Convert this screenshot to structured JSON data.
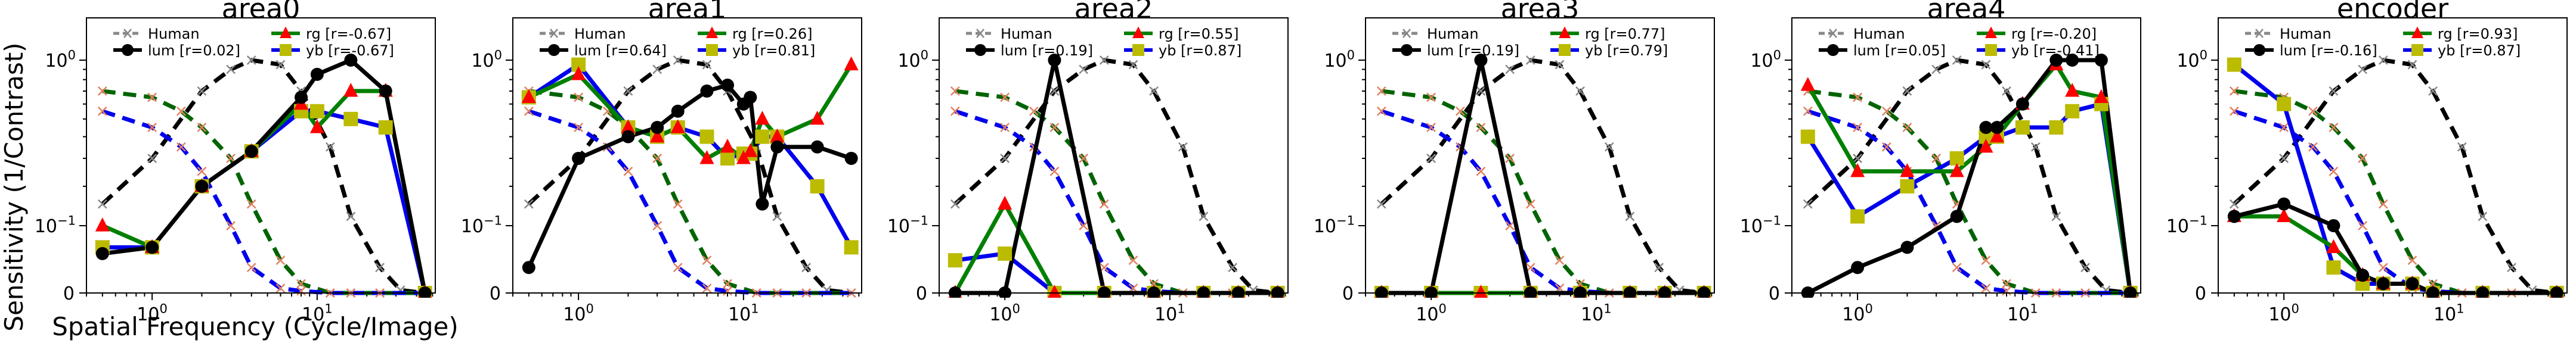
{
  "figure": {
    "ylabel": "Sensitivity (1/Contrast)",
    "xlabel": "Spatial Frequency (Cycle/Image)"
  },
  "colors": {
    "Human": "#888888",
    "lum": "#000000",
    "rg": "#008000",
    "yb": "#0000ee",
    "rg_model_marker": "#ff0000",
    "yb_model_marker": "#bbbb00",
    "human_lum": "#000000",
    "human_rg": "#006400",
    "human_yb": "#0000ee",
    "human_marker": "#e08060"
  },
  "chart_data": [
    {
      "type": "line",
      "title": "area0",
      "xscale": "log",
      "yscale": "symlog",
      "ylim": [
        0,
        1.6
      ],
      "legend": [
        {
          "key": "Human",
          "label": "Human",
          "r": ""
        },
        {
          "key": "lum",
          "label": "lum",
          "r": "[r=0.02]"
        },
        {
          "key": "rg",
          "label": "rg",
          "r": "[r=-0.67]"
        },
        {
          "key": "yb",
          "label": "yb",
          "r": "[r=-0.67]"
        }
      ],
      "series": [
        {
          "key": "lum",
          "x": [
            0.5,
            1,
            2,
            4,
            8,
            10,
            16,
            26,
            45
          ],
          "y": [
            0.05,
            0.06,
            0.2,
            0.33,
            0.65,
            0.85,
            1.0,
            0.7,
            0.0
          ]
        },
        {
          "key": "rg",
          "x": [
            0.5,
            1,
            2,
            4,
            8,
            10,
            16,
            26,
            45
          ],
          "y": [
            0.1,
            0.06,
            0.2,
            0.33,
            0.6,
            0.45,
            0.7,
            0.7,
            0.0
          ]
        },
        {
          "key": "yb",
          "x": [
            0.5,
            1,
            2,
            4,
            8,
            10,
            16,
            26,
            45
          ],
          "y": [
            0.06,
            0.06,
            0.2,
            0.33,
            0.55,
            0.55,
            0.5,
            0.45,
            0.0
          ]
        }
      ]
    },
    {
      "type": "line",
      "title": "area1",
      "xscale": "log",
      "yscale": "symlog",
      "ylim": [
        0,
        1.6
      ],
      "legend": [
        {
          "key": "Human",
          "label": "Human",
          "r": ""
        },
        {
          "key": "lum",
          "label": "lum",
          "r": "[r=0.64]"
        },
        {
          "key": "rg",
          "label": "rg",
          "r": "[r=0.26]"
        },
        {
          "key": "yb",
          "label": "yb",
          "r": "[r=0.81]"
        }
      ],
      "series": [
        {
          "key": "lum",
          "x": [
            0.5,
            1,
            2,
            3,
            4,
            6,
            8,
            10,
            11,
            13,
            16,
            28,
            45
          ],
          "y": [
            0.03,
            0.3,
            0.4,
            0.45,
            0.55,
            0.7,
            0.75,
            0.6,
            0.65,
            0.15,
            0.35,
            0.35,
            0.3
          ]
        },
        {
          "key": "rg",
          "x": [
            0.5,
            1,
            2,
            3,
            4,
            6,
            8,
            10,
            11,
            13,
            16,
            28,
            45
          ],
          "y": [
            0.65,
            0.85,
            0.45,
            0.4,
            0.45,
            0.3,
            0.35,
            0.3,
            0.33,
            0.5,
            0.4,
            0.5,
            0.95
          ]
        },
        {
          "key": "yb",
          "x": [
            0.5,
            1,
            2,
            3,
            4,
            6,
            8,
            10,
            11,
            13,
            16,
            28,
            45
          ],
          "y": [
            0.65,
            0.95,
            0.45,
            0.4,
            0.45,
            0.4,
            0.3,
            0.32,
            0.32,
            0.4,
            0.4,
            0.2,
            0.06
          ]
        }
      ]
    },
    {
      "type": "line",
      "title": "area2",
      "xscale": "log",
      "yscale": "symlog",
      "ylim": [
        0,
        1.6
      ],
      "legend": [
        {
          "key": "Human",
          "label": "Human",
          "r": ""
        },
        {
          "key": "lum",
          "label": "lum",
          "r": "[r=0.19]"
        },
        {
          "key": "rg",
          "label": "rg",
          "r": "[r=0.55]"
        },
        {
          "key": "yb",
          "label": "yb",
          "r": "[r=0.87]"
        }
      ],
      "series": [
        {
          "key": "lum",
          "x": [
            0.5,
            1,
            2,
            4,
            8,
            16,
            26,
            45
          ],
          "y": [
            0.0,
            0.0,
            1.0,
            0.0,
            0.0,
            0.0,
            0.0,
            0.0
          ]
        },
        {
          "key": "rg",
          "x": [
            0.5,
            1,
            2,
            4,
            8,
            16,
            26,
            45
          ],
          "y": [
            0.0,
            0.15,
            0.0,
            0.0,
            0.0,
            0.0,
            0.0,
            0.0
          ]
        },
        {
          "key": "yb",
          "x": [
            0.5,
            1,
            2,
            4,
            8,
            16,
            26,
            45
          ],
          "y": [
            0.04,
            0.05,
            0.0,
            0.0,
            0.0,
            0.0,
            0.0,
            0.0
          ]
        }
      ]
    },
    {
      "type": "line",
      "title": "area3",
      "xscale": "log",
      "yscale": "symlog",
      "ylim": [
        0,
        1.6
      ],
      "legend": [
        {
          "key": "Human",
          "label": "Human",
          "r": ""
        },
        {
          "key": "lum",
          "label": "lum",
          "r": "[r=0.19]"
        },
        {
          "key": "rg",
          "label": "rg",
          "r": "[r=0.77]"
        },
        {
          "key": "yb",
          "label": "yb",
          "r": "[r=0.79]"
        }
      ],
      "series": [
        {
          "key": "lum",
          "x": [
            0.5,
            1,
            2,
            4,
            8,
            16,
            26,
            45
          ],
          "y": [
            0.0,
            0.0,
            1.0,
            0.0,
            0.0,
            0.0,
            0.0,
            0.0
          ]
        },
        {
          "key": "rg",
          "x": [
            0.5,
            1,
            2,
            4,
            8,
            16,
            26,
            45
          ],
          "y": [
            0.0,
            0.0,
            0.0,
            0.0,
            0.0,
            0.0,
            0.0,
            0.0
          ]
        },
        {
          "key": "yb",
          "x": [
            0.5,
            1,
            2,
            4,
            8,
            16,
            26,
            45
          ],
          "y": [
            0.0,
            0.0,
            0.0,
            0.0,
            0.0,
            0.0,
            0.0,
            0.0
          ]
        }
      ]
    },
    {
      "type": "line",
      "title": "area4",
      "xscale": "log",
      "yscale": "symlog",
      "ylim": [
        0,
        1.6
      ],
      "legend": [
        {
          "key": "Human",
          "label": "Human",
          "r": ""
        },
        {
          "key": "lum",
          "label": "lum",
          "r": "[r=0.05]"
        },
        {
          "key": "rg",
          "label": "rg",
          "r": "[r=-0.20]"
        },
        {
          "key": "yb",
          "label": "yb",
          "r": "[r=-0.41]"
        }
      ],
      "series": [
        {
          "key": "lum",
          "x": [
            0.5,
            1,
            2,
            4,
            6,
            7,
            10,
            16,
            20,
            30,
            45
          ],
          "y": [
            0.0,
            0.03,
            0.06,
            0.12,
            0.45,
            0.45,
            0.6,
            1.0,
            1.0,
            1.0,
            0.0
          ]
        },
        {
          "key": "rg",
          "x": [
            0.5,
            1,
            2,
            4,
            6,
            7,
            10,
            16,
            20,
            30,
            45
          ],
          "y": [
            0.75,
            0.25,
            0.25,
            0.25,
            0.35,
            0.4,
            0.6,
            0.95,
            0.7,
            0.65,
            0.0
          ]
        },
        {
          "key": "yb",
          "x": [
            0.5,
            1,
            2,
            4,
            6,
            7,
            10,
            16,
            20,
            30,
            45
          ],
          "y": [
            0.4,
            0.12,
            0.2,
            0.3,
            0.4,
            0.4,
            0.45,
            0.45,
            0.55,
            0.6,
            0.0
          ]
        }
      ]
    },
    {
      "type": "line",
      "title": "encoder",
      "xscale": "log",
      "yscale": "symlog",
      "ylim": [
        0,
        1.6
      ],
      "legend": [
        {
          "key": "Human",
          "label": "Human",
          "r": ""
        },
        {
          "key": "lum",
          "label": "lum",
          "r": "[r=-0.16]"
        },
        {
          "key": "rg",
          "label": "rg",
          "r": "[r=0.93]"
        },
        {
          "key": "yb",
          "label": "yb",
          "r": "[r=0.87]"
        }
      ],
      "series": [
        {
          "key": "lum",
          "x": [
            0.5,
            1,
            2,
            3,
            4,
            6,
            8,
            16,
            45
          ],
          "y": [
            0.12,
            0.15,
            0.1,
            0.02,
            0.01,
            0.01,
            0.0,
            0.0,
            0.0
          ]
        },
        {
          "key": "rg",
          "x": [
            0.5,
            1,
            2,
            3,
            4,
            6,
            8,
            16,
            45
          ],
          "y": [
            0.12,
            0.12,
            0.06,
            0.02,
            0.01,
            0.01,
            0.0,
            0.0,
            0.0
          ]
        },
        {
          "key": "yb",
          "x": [
            0.5,
            1,
            2,
            3,
            4,
            6,
            8,
            16,
            45
          ],
          "y": [
            0.95,
            0.6,
            0.03,
            0.01,
            0.01,
            0.01,
            0.0,
            0.0,
            0.0
          ]
        }
      ]
    }
  ],
  "human_reference": {
    "lum": {
      "x": [
        0.5,
        1,
        2,
        3,
        4,
        6,
        8,
        12,
        16,
        24,
        32,
        45
      ],
      "y": [
        0.15,
        0.3,
        0.7,
        0.9,
        1.0,
        0.95,
        0.7,
        0.35,
        0.12,
        0.03,
        0.003,
        0.0
      ]
    },
    "rg": {
      "x": [
        0.5,
        1,
        1.5,
        2,
        3,
        4,
        6,
        8,
        12,
        16,
        24,
        45
      ],
      "y": [
        0.7,
        0.65,
        0.55,
        0.45,
        0.3,
        0.15,
        0.04,
        0.01,
        0.0,
        0.0,
        0.0,
        0.0
      ]
    },
    "yb": {
      "x": [
        0.5,
        1,
        1.5,
        2,
        3,
        4,
        6,
        8,
        12,
        16,
        24,
        45
      ],
      "y": [
        0.55,
        0.45,
        0.35,
        0.25,
        0.1,
        0.03,
        0.005,
        0.002,
        0.0,
        0.0,
        0.0,
        0.0
      ]
    }
  },
  "axis_ticks": {
    "x": [
      {
        "v": 1,
        "base": "10",
        "exp": "0"
      },
      {
        "v": 10,
        "base": "10",
        "exp": "1"
      }
    ],
    "y": [
      {
        "v": 0,
        "text": "0"
      },
      {
        "v": 0.1,
        "base": "10",
        "exp": "−1"
      },
      {
        "v": 1,
        "base": "10",
        "exp": "0"
      }
    ]
  }
}
